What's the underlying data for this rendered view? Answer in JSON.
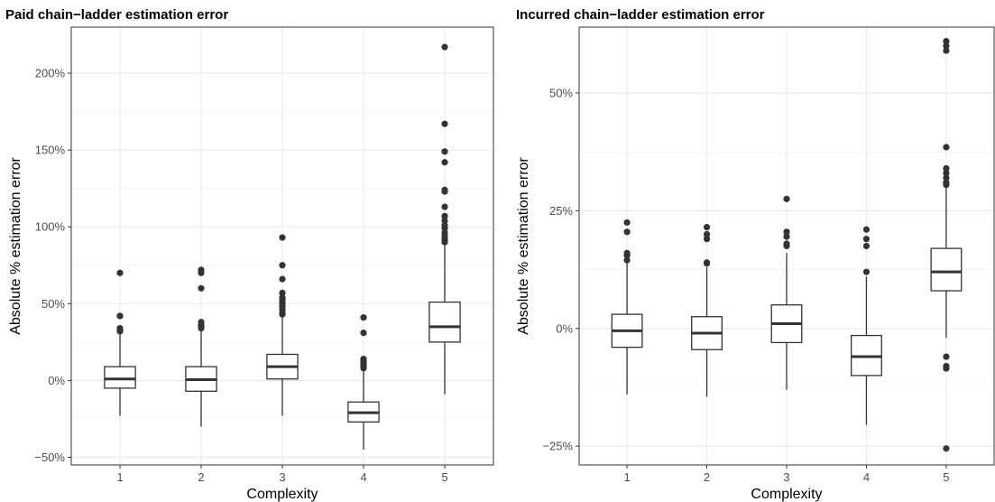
{
  "chart_data": [
    {
      "type": "boxplot",
      "title": "Paid chain−ladder estimation error",
      "xlabel": "Complexity",
      "ylabel": "Absolute % estimation error",
      "categories": [
        "1",
        "2",
        "3",
        "4",
        "5"
      ],
      "ylim": [
        -0.55,
        2.3
      ],
      "yticks": [
        -0.5,
        0,
        0.5,
        1.0,
        1.5,
        2.0
      ],
      "ytick_labels": [
        "−50%",
        "0%",
        "50%",
        "100%",
        "150%",
        "200%"
      ],
      "grid": true,
      "boxes": [
        {
          "category": "1",
          "min": -0.23,
          "q1": -0.05,
          "median": 0.01,
          "q3": 0.09,
          "max": 0.3,
          "outliers": [
            0.7,
            0.42,
            0.42,
            0.34,
            0.33,
            0.32
          ]
        },
        {
          "category": "2",
          "min": -0.3,
          "q1": -0.07,
          "median": 0.005,
          "q3": 0.09,
          "max": 0.32,
          "outliers": [
            0.72,
            0.7,
            0.6,
            0.38,
            0.36,
            0.35,
            0.34
          ]
        },
        {
          "category": "3",
          "min": -0.23,
          "q1": 0.01,
          "median": 0.09,
          "q3": 0.17,
          "max": 0.41,
          "outliers": [
            0.93,
            0.75,
            0.66,
            0.57,
            0.54,
            0.53,
            0.51,
            0.5,
            0.48,
            0.46,
            0.44,
            0.43
          ]
        },
        {
          "category": "4",
          "min": -0.45,
          "q1": -0.27,
          "median": -0.21,
          "q3": -0.14,
          "max": 0.06,
          "outliers": [
            0.41,
            0.31,
            0.14,
            0.13,
            0.12,
            0.11,
            0.1,
            0.09,
            0.08
          ]
        },
        {
          "category": "5",
          "min": -0.09,
          "q1": 0.25,
          "median": 0.35,
          "q3": 0.51,
          "max": 0.88,
          "outliers": [
            2.17,
            1.67,
            1.49,
            1.42,
            1.24,
            1.23,
            1.13,
            1.07,
            1.04,
            1.01,
            0.99,
            0.96,
            0.94,
            0.92,
            0.91,
            0.9
          ]
        }
      ]
    },
    {
      "type": "boxplot",
      "title": "Incurred chain−ladder estimation error",
      "xlabel": "Complexity",
      "ylabel": "Absolute % estimation error",
      "categories": [
        "1",
        "2",
        "3",
        "4",
        "5"
      ],
      "ylim": [
        -0.29,
        0.64
      ],
      "yticks": [
        -0.25,
        0,
        0.25,
        0.5
      ],
      "ytick_labels": [
        "−25%",
        "0%",
        "25%",
        "50%"
      ],
      "grid": true,
      "boxes": [
        {
          "category": "1",
          "min": -0.14,
          "q1": -0.04,
          "median": -0.005,
          "q3": 0.03,
          "max": 0.14,
          "outliers": [
            0.225,
            0.205,
            0.16,
            0.155,
            0.145
          ]
        },
        {
          "category": "2",
          "min": -0.145,
          "q1": -0.045,
          "median": -0.01,
          "q3": 0.025,
          "max": 0.13,
          "outliers": [
            0.215,
            0.2,
            0.19,
            0.14,
            0.138
          ]
        },
        {
          "category": "3",
          "min": -0.13,
          "q1": -0.03,
          "median": 0.01,
          "q3": 0.05,
          "max": 0.16,
          "outliers": [
            0.275,
            0.205,
            0.195,
            0.18,
            0.175
          ]
        },
        {
          "category": "4",
          "min": -0.205,
          "q1": -0.1,
          "median": -0.06,
          "q3": -0.015,
          "max": 0.11,
          "outliers": [
            0.21,
            0.19,
            0.175,
            0.12
          ]
        },
        {
          "category": "5",
          "min": -0.02,
          "q1": 0.08,
          "median": 0.12,
          "q3": 0.17,
          "max": 0.3,
          "outliers": [
            0.61,
            0.6,
            0.59,
            0.385,
            0.34,
            0.33,
            0.32,
            0.31,
            0.305,
            -0.06,
            -0.08,
            -0.085,
            -0.255
          ]
        }
      ]
    }
  ]
}
